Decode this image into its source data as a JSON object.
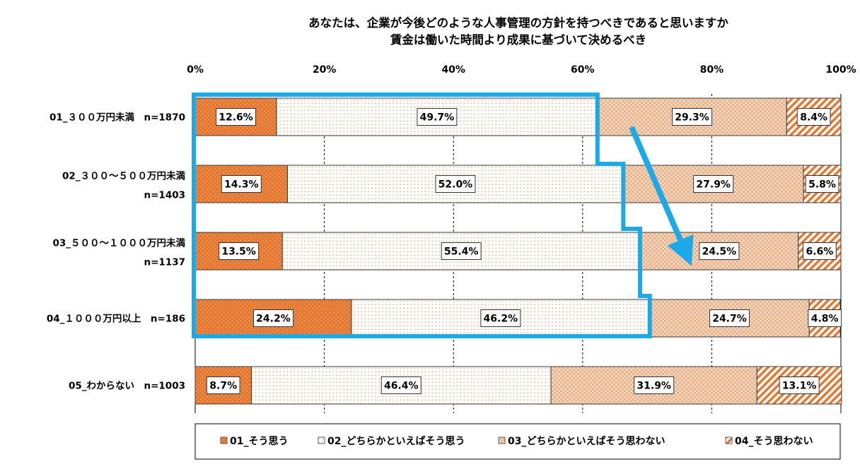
{
  "chart_data": {
    "type": "bar",
    "orientation": "horizontal",
    "stacked": true,
    "percent_stacked": true,
    "title": "あなたは、企業が今後どのような人事管理の方針を持つべきであると思いますか",
    "subtitle": "賃金は働いた時間より成果に基づいて決めるべき",
    "xlim": [
      0,
      100
    ],
    "x_ticks": [
      "0%",
      "20%",
      "40%",
      "60%",
      "80%",
      "100%"
    ],
    "grid": "vertical-dashed",
    "legend_placement": "bottom",
    "categories": [
      [
        "01_３００万円未満　n=1870"
      ],
      [
        "02_３００～５００万円未満",
        "n=1403"
      ],
      [
        "03_５００～１０００万円未満",
        "n=1137"
      ],
      [
        "04_１０００万円以上　n=186"
      ],
      [
        "05_わからない　n=1003"
      ]
    ],
    "series": [
      {
        "name": "01_そう思う",
        "values": [
          12.6,
          14.3,
          13.5,
          24.2,
          8.7
        ],
        "labels": [
          "12.6%",
          "14.3%",
          "13.5%",
          "24.2%",
          "8.7%"
        ],
        "color": "#E87830",
        "pattern": "solid-dots"
      },
      {
        "name": "02_どちらかといえばそう思う",
        "values": [
          49.7,
          52.0,
          55.4,
          46.2,
          46.4
        ],
        "labels": [
          "49.7%",
          "52.0%",
          "55.4%",
          "46.2%",
          "46.4%"
        ],
        "color": "#F2C9A6",
        "pattern": "light-dots"
      },
      {
        "name": "03_どちらかといえばそう思わない",
        "values": [
          29.3,
          27.9,
          24.5,
          24.7,
          31.9
        ],
        "labels": [
          "29.3%",
          "27.9%",
          "24.5%",
          "24.7%",
          "31.9%"
        ],
        "color": "#F2D2B8",
        "pattern": "checker"
      },
      {
        "name": "04_そう思わない",
        "values": [
          8.4,
          5.8,
          6.6,
          4.8,
          13.1
        ],
        "labels": [
          "8.4%",
          "5.8%",
          "6.6%",
          "4.8%",
          "13.1%"
        ],
        "color": "#E87830",
        "pattern": "diagonal"
      }
    ],
    "annotations": [
      {
        "type": "highlight-outline",
        "color": "#1BA9E8",
        "covers": "01_そう思う and 02_どちらかといえばそう思う for rows 01–04"
      },
      {
        "type": "arrow",
        "color": "#1BA9E8",
        "direction": "down-right",
        "from_row": 0,
        "to_row": 2
      }
    ]
  }
}
